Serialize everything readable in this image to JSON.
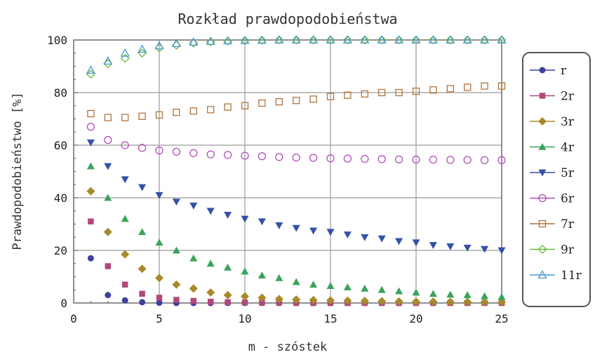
{
  "chart_data": {
    "type": "scatter",
    "title": "Rozkład prawdopodobieństwa",
    "xlabel": "m - szóstek",
    "ylabel": "Prawdopodobieństwo [%]",
    "xlim": [
      0,
      25
    ],
    "ylim": [
      0,
      100
    ],
    "xticks": [
      0,
      5,
      10,
      15,
      20,
      25
    ],
    "yticks": [
      0,
      20,
      40,
      60,
      80,
      100
    ],
    "grid": true,
    "legend_position": "right",
    "series": [
      {
        "name": "r",
        "color": "#3f3f9e",
        "marker": "circle-filled",
        "x": [
          1,
          2,
          3,
          4,
          5,
          6,
          7,
          8,
          9,
          10,
          11,
          12,
          13,
          14,
          15,
          16,
          17,
          18,
          19,
          20,
          21,
          22,
          23,
          24,
          25
        ],
        "values": [
          17,
          3,
          1,
          0.3,
          0.1,
          0,
          0,
          0,
          0,
          0,
          0,
          0,
          0,
          0,
          0,
          0,
          0,
          0,
          0,
          0,
          0,
          0,
          0,
          0,
          0
        ]
      },
      {
        "name": "2r",
        "color": "#b0487a",
        "marker": "square-filled",
        "x": [
          1,
          2,
          3,
          4,
          5,
          6,
          7,
          8,
          9,
          10,
          11,
          12,
          13,
          14,
          15,
          16,
          17,
          18,
          19,
          20,
          21,
          22,
          23,
          24,
          25
        ],
        "values": [
          31,
          14,
          7,
          3.5,
          2,
          1.2,
          0.8,
          0.5,
          0.3,
          0.2,
          0.1,
          0.1,
          0,
          0,
          0,
          0,
          0,
          0,
          0,
          0,
          0,
          0,
          0,
          0,
          0
        ]
      },
      {
        "name": "3r",
        "color": "#a88a2a",
        "marker": "diamond-filled",
        "x": [
          1,
          2,
          3,
          4,
          5,
          6,
          7,
          8,
          9,
          10,
          11,
          12,
          13,
          14,
          15,
          16,
          17,
          18,
          19,
          20,
          21,
          22,
          23,
          24,
          25
        ],
        "values": [
          42.5,
          27,
          18.5,
          13,
          9.5,
          7,
          5.5,
          4,
          3,
          2.5,
          2,
          1.5,
          1.3,
          1.1,
          1,
          0.9,
          0.8,
          0.7,
          0.6,
          0.5,
          0.5,
          0.4,
          0.4,
          0.3,
          0.3
        ]
      },
      {
        "name": "4r",
        "color": "#3aa35a",
        "marker": "triangle-up-filled",
        "x": [
          1,
          2,
          3,
          4,
          5,
          6,
          7,
          8,
          9,
          10,
          11,
          12,
          13,
          14,
          15,
          16,
          17,
          18,
          19,
          20,
          21,
          22,
          23,
          24,
          25
        ],
        "values": [
          52,
          40,
          32,
          27,
          23,
          20,
          17,
          15,
          13.5,
          12,
          10.5,
          9.5,
          8,
          7,
          6.5,
          6,
          5.5,
          5,
          4.5,
          4,
          3.5,
          3.2,
          3,
          2.6,
          2.3
        ]
      },
      {
        "name": "5r",
        "color": "#3451a8",
        "marker": "triangle-down-filled",
        "x": [
          1,
          2,
          3,
          4,
          5,
          6,
          7,
          8,
          9,
          10,
          11,
          12,
          13,
          14,
          15,
          16,
          17,
          18,
          19,
          20,
          21,
          22,
          23,
          24,
          25
        ],
        "values": [
          61,
          52,
          47,
          44,
          41,
          38.5,
          37,
          35,
          33.5,
          32,
          31,
          29.5,
          28.5,
          27.5,
          27,
          26,
          25,
          24.5,
          23.5,
          23,
          22,
          21.5,
          21,
          20.5,
          20
        ]
      },
      {
        "name": "6r",
        "color": "#b04ab8",
        "marker": "circle-open",
        "x": [
          1,
          2,
          3,
          4,
          5,
          6,
          7,
          8,
          9,
          10,
          11,
          12,
          13,
          14,
          15,
          16,
          17,
          18,
          19,
          20,
          21,
          22,
          23,
          24,
          25
        ],
        "values": [
          67,
          62,
          60,
          59,
          58,
          57.5,
          57,
          56.5,
          56.3,
          56,
          55.8,
          55.5,
          55.3,
          55.2,
          55,
          54.9,
          54.8,
          54.7,
          54.6,
          54.5,
          54.5,
          54.4,
          54.4,
          54.3,
          54.3
        ]
      },
      {
        "name": "7r",
        "color": "#b0733a",
        "marker": "square-open",
        "x": [
          1,
          2,
          3,
          4,
          5,
          6,
          7,
          8,
          9,
          10,
          11,
          12,
          13,
          14,
          15,
          16,
          17,
          18,
          19,
          20,
          21,
          22,
          23,
          24,
          25
        ],
        "values": [
          72,
          70.5,
          70.5,
          71,
          71.5,
          72.5,
          73,
          73.5,
          74.5,
          75,
          76,
          76.5,
          77,
          77.5,
          78.5,
          79,
          79.5,
          80,
          80,
          80.5,
          81,
          81.5,
          82,
          82.5,
          82.5
        ]
      },
      {
        "name": "9r",
        "color": "#6aba3a",
        "marker": "diamond-open",
        "x": [
          1,
          2,
          3,
          4,
          5,
          6,
          7,
          8,
          9,
          10,
          11,
          12,
          13,
          14,
          15,
          16,
          17,
          18,
          19,
          20,
          21,
          22,
          23,
          24,
          25
        ],
        "values": [
          87,
          91,
          93,
          95,
          97,
          98,
          98.8,
          99.3,
          99.6,
          99.8,
          99.9,
          100,
          100,
          100,
          100,
          100,
          100,
          100,
          100,
          100,
          100,
          100,
          100,
          100,
          100
        ]
      },
      {
        "name": "11r",
        "color": "#4a9ad0",
        "marker": "triangle-up-open",
        "x": [
          1,
          2,
          3,
          4,
          5,
          6,
          7,
          8,
          9,
          10,
          11,
          12,
          13,
          14,
          15,
          16,
          17,
          18,
          19,
          20,
          21,
          22,
          23,
          24,
          25
        ],
        "values": [
          88.5,
          92,
          95,
          96.5,
          97.8,
          98.7,
          99.2,
          99.5,
          99.7,
          99.8,
          99.9,
          100,
          100,
          100,
          100,
          100,
          100,
          100,
          100,
          100,
          100,
          100,
          100,
          100,
          100
        ]
      }
    ]
  }
}
